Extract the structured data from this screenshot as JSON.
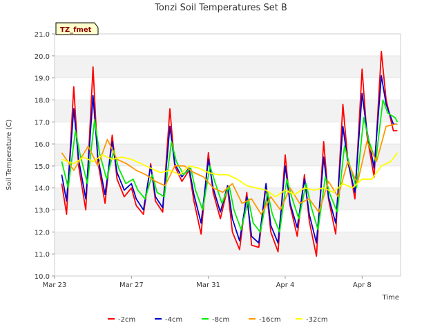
{
  "chart_data": {
    "type": "line",
    "title": "Tonzi Soil Temperatures Set B",
    "xlabel": "Time",
    "ylabel": "Soil Temperature (C)",
    "site_badge": "TZ_fmet",
    "x_ticks": [
      "Mar 23",
      "Mar 27",
      "Mar 31",
      "Apr 4",
      "Apr 8"
    ],
    "xlim": [
      "2023-03-23",
      "2023-04-10"
    ],
    "ylim": [
      10.0,
      21.0
    ],
    "y_ticks": [
      "10.0",
      "11.0",
      "12.0",
      "13.0",
      "14.0",
      "15.0",
      "16.0",
      "17.0",
      "18.0",
      "19.0",
      "20.0",
      "21.0"
    ],
    "grid": "horizontal bands",
    "legend_position": "bottom",
    "series": [
      {
        "name": "-2cm",
        "color": "#ff0000",
        "x": [
          "2023-03-23 09:00",
          "2023-03-23 15:00",
          "2023-03-24 00:00",
          "2023-03-24 06:00",
          "2023-03-24 15:00",
          "2023-03-25 00:00",
          "2023-03-25 06:00",
          "2023-03-25 15:00",
          "2023-03-26 00:00",
          "2023-03-26 06:00",
          "2023-03-26 15:00",
          "2023-03-27 00:00",
          "2023-03-27 06:00",
          "2023-03-27 15:00",
          "2023-03-28 00:00",
          "2023-03-28 06:00",
          "2023-03-28 15:00",
          "2023-03-29 00:00",
          "2023-03-29 06:00",
          "2023-03-29 15:00",
          "2023-03-30 00:00",
          "2023-03-30 06:00",
          "2023-03-30 15:00",
          "2023-03-31 00:00",
          "2023-03-31 06:00",
          "2023-03-31 15:00",
          "2023-04-01 00:00",
          "2023-04-01 06:00",
          "2023-04-01 15:00",
          "2023-04-02 00:00",
          "2023-04-02 06:00",
          "2023-04-02 15:00",
          "2023-04-03 00:00",
          "2023-04-03 06:00",
          "2023-04-03 15:00",
          "2023-04-04 00:00",
          "2023-04-04 06:00",
          "2023-04-04 15:00",
          "2023-04-05 00:00",
          "2023-04-05 06:00",
          "2023-04-05 15:00",
          "2023-04-06 00:00",
          "2023-04-06 06:00",
          "2023-04-06 15:00",
          "2023-04-07 00:00",
          "2023-04-07 06:00",
          "2023-04-07 15:00",
          "2023-04-08 00:00",
          "2023-04-08 06:00",
          "2023-04-08 15:00",
          "2023-04-09 00:00",
          "2023-04-09 06:00",
          "2023-04-09 15:00",
          "2023-04-09 20:00"
        ],
        "values": [
          14.2,
          12.8,
          18.6,
          15.0,
          13.0,
          19.5,
          15.2,
          13.3,
          16.4,
          14.4,
          13.6,
          14.0,
          13.2,
          12.8,
          15.1,
          13.4,
          12.9,
          17.6,
          15.0,
          14.3,
          14.8,
          13.4,
          11.9,
          15.6,
          13.8,
          12.6,
          14.0,
          12.0,
          11.2,
          13.8,
          11.4,
          11.3,
          14.1,
          12.0,
          11.1,
          15.5,
          13.2,
          11.8,
          14.6,
          12.5,
          10.9,
          16.1,
          13.5,
          11.9,
          17.8,
          15.3,
          13.5,
          19.4,
          16.4,
          14.5,
          20.2,
          18.0,
          16.6,
          16.6
        ]
      },
      {
        "name": "-4cm",
        "color": "#0000cc",
        "x": [
          "2023-03-23 09:00",
          "2023-03-23 15:00",
          "2023-03-24 00:00",
          "2023-03-24 06:00",
          "2023-03-24 15:00",
          "2023-03-25 00:00",
          "2023-03-25 06:00",
          "2023-03-25 15:00",
          "2023-03-26 00:00",
          "2023-03-26 06:00",
          "2023-03-26 15:00",
          "2023-03-27 00:00",
          "2023-03-27 06:00",
          "2023-03-27 15:00",
          "2023-03-28 00:00",
          "2023-03-28 06:00",
          "2023-03-28 15:00",
          "2023-03-29 00:00",
          "2023-03-29 06:00",
          "2023-03-29 15:00",
          "2023-03-30 00:00",
          "2023-03-30 06:00",
          "2023-03-30 15:00",
          "2023-03-31 00:00",
          "2023-03-31 06:00",
          "2023-03-31 15:00",
          "2023-04-01 00:00",
          "2023-04-01 06:00",
          "2023-04-01 15:00",
          "2023-04-02 00:00",
          "2023-04-02 06:00",
          "2023-04-02 15:00",
          "2023-04-03 00:00",
          "2023-04-03 06:00",
          "2023-04-03 15:00",
          "2023-04-04 00:00",
          "2023-04-04 06:00",
          "2023-04-04 15:00",
          "2023-04-05 00:00",
          "2023-04-05 06:00",
          "2023-04-05 15:00",
          "2023-04-06 00:00",
          "2023-04-06 06:00",
          "2023-04-06 15:00",
          "2023-04-07 00:00",
          "2023-04-07 06:00",
          "2023-04-07 15:00",
          "2023-04-08 00:00",
          "2023-04-08 06:00",
          "2023-04-08 15:00",
          "2023-04-09 00:00",
          "2023-04-09 06:00",
          "2023-04-09 15:00",
          "2023-04-09 20:00"
        ],
        "values": [
          14.6,
          13.4,
          17.6,
          15.3,
          13.5,
          18.2,
          15.4,
          13.7,
          16.1,
          14.7,
          13.9,
          14.2,
          13.5,
          13.0,
          15.0,
          13.6,
          13.1,
          16.8,
          15.1,
          14.5,
          14.9,
          13.7,
          12.4,
          15.3,
          14.0,
          12.9,
          14.1,
          12.6,
          11.6,
          13.6,
          11.8,
          11.5,
          14.2,
          12.3,
          11.5,
          15.0,
          13.3,
          12.2,
          14.4,
          12.8,
          11.5,
          15.4,
          13.6,
          12.4,
          16.8,
          15.2,
          13.8,
          18.3,
          16.6,
          14.9,
          19.1,
          17.8,
          16.9,
          16.9
        ]
      },
      {
        "name": "-8cm",
        "color": "#00ee00",
        "x": [
          "2023-03-23 09:00",
          "2023-03-23 17:00",
          "2023-03-24 02:00",
          "2023-03-24 08:00",
          "2023-03-24 17:00",
          "2023-03-25 02:00",
          "2023-03-25 08:00",
          "2023-03-25 17:00",
          "2023-03-26 02:00",
          "2023-03-26 08:00",
          "2023-03-26 17:00",
          "2023-03-27 02:00",
          "2023-03-27 08:00",
          "2023-03-27 17:00",
          "2023-03-28 02:00",
          "2023-03-28 08:00",
          "2023-03-28 17:00",
          "2023-03-29 02:00",
          "2023-03-29 08:00",
          "2023-03-29 17:00",
          "2023-03-30 02:00",
          "2023-03-30 08:00",
          "2023-03-30 17:00",
          "2023-03-31 02:00",
          "2023-03-31 08:00",
          "2023-03-31 17:00",
          "2023-04-01 02:00",
          "2023-04-01 08:00",
          "2023-04-01 17:00",
          "2023-04-02 02:00",
          "2023-04-02 08:00",
          "2023-04-02 17:00",
          "2023-04-03 02:00",
          "2023-04-03 08:00",
          "2023-04-03 17:00",
          "2023-04-04 02:00",
          "2023-04-04 08:00",
          "2023-04-04 17:00",
          "2023-04-05 02:00",
          "2023-04-05 08:00",
          "2023-04-05 17:00",
          "2023-04-06 02:00",
          "2023-04-06 08:00",
          "2023-04-06 17:00",
          "2023-04-07 02:00",
          "2023-04-07 08:00",
          "2023-04-07 17:00",
          "2023-04-08 02:00",
          "2023-04-08 08:00",
          "2023-04-08 17:00",
          "2023-04-09 02:00",
          "2023-04-09 08:00",
          "2023-04-09 17:00",
          "2023-04-09 20:00"
        ],
        "values": [
          15.2,
          14.0,
          16.6,
          15.5,
          14.2,
          17.1,
          15.6,
          14.4,
          15.7,
          14.9,
          14.2,
          14.4,
          13.9,
          13.5,
          14.6,
          13.8,
          13.6,
          16.1,
          15.2,
          14.6,
          14.9,
          13.9,
          13.0,
          15.0,
          14.3,
          13.3,
          14.1,
          13.0,
          12.1,
          13.5,
          12.4,
          12.0,
          13.8,
          12.8,
          12.0,
          14.4,
          13.6,
          12.6,
          14.2,
          13.2,
          12.1,
          14.5,
          13.7,
          12.9,
          15.9,
          15.1,
          14.0,
          17.2,
          16.2,
          15.2,
          18.0,
          17.4,
          17.2,
          17.0
        ]
      },
      {
        "name": "-16cm",
        "color": "#ff9900",
        "x": [
          "2023-03-23 09:00",
          "2023-03-24 00:00",
          "2023-03-24 18:00",
          "2023-03-25 06:00",
          "2023-03-25 18:00",
          "2023-03-26 06:00",
          "2023-03-26 18:00",
          "2023-03-27 06:00",
          "2023-03-27 18:00",
          "2023-03-28 06:00",
          "2023-03-28 18:00",
          "2023-03-29 06:00",
          "2023-03-29 18:00",
          "2023-03-30 06:00",
          "2023-03-30 18:00",
          "2023-03-31 06:00",
          "2023-03-31 18:00",
          "2023-04-01 06:00",
          "2023-04-01 18:00",
          "2023-04-02 06:00",
          "2023-04-02 18:00",
          "2023-04-03 06:00",
          "2023-04-03 18:00",
          "2023-04-04 06:00",
          "2023-04-04 18:00",
          "2023-04-05 06:00",
          "2023-04-05 18:00",
          "2023-04-06 06:00",
          "2023-04-06 18:00",
          "2023-04-07 06:00",
          "2023-04-07 18:00",
          "2023-04-08 06:00",
          "2023-04-08 18:00",
          "2023-04-09 06:00",
          "2023-04-09 18:00",
          "2023-04-09 20:00"
        ],
        "values": [
          15.6,
          14.8,
          15.9,
          15.0,
          16.2,
          15.3,
          15.1,
          14.8,
          14.6,
          14.3,
          14.1,
          15.0,
          15.0,
          14.7,
          14.5,
          14.0,
          13.8,
          14.2,
          13.3,
          13.5,
          12.8,
          13.6,
          13.0,
          14.0,
          13.3,
          13.5,
          12.9,
          14.3,
          13.6,
          15.2,
          14.2,
          16.1,
          15.2,
          16.8,
          16.9,
          16.9
        ]
      },
      {
        "name": "-32cm",
        "color": "#ffff00",
        "x": [
          "2023-03-23 09:00",
          "2023-03-24 00:00",
          "2023-03-24 12:00",
          "2023-03-25 00:00",
          "2023-03-25 12:00",
          "2023-03-26 00:00",
          "2023-03-26 12:00",
          "2023-03-27 00:00",
          "2023-03-27 12:00",
          "2023-03-28 00:00",
          "2023-03-28 12:00",
          "2023-03-29 00:00",
          "2023-03-29 12:00",
          "2023-03-30 00:00",
          "2023-03-30 12:00",
          "2023-03-31 00:00",
          "2023-03-31 12:00",
          "2023-04-01 00:00",
          "2023-04-01 12:00",
          "2023-04-02 00:00",
          "2023-04-02 12:00",
          "2023-04-03 00:00",
          "2023-04-03 12:00",
          "2023-04-04 00:00",
          "2023-04-04 12:00",
          "2023-04-05 00:00",
          "2023-04-05 12:00",
          "2023-04-06 00:00",
          "2023-04-06 12:00",
          "2023-04-07 00:00",
          "2023-04-07 12:00",
          "2023-04-08 00:00",
          "2023-04-08 12:00",
          "2023-04-09 00:00",
          "2023-04-09 12:00",
          "2023-04-09 20:00"
        ],
        "values": [
          15.3,
          15.1,
          15.4,
          15.2,
          15.5,
          15.3,
          15.4,
          15.3,
          15.1,
          14.9,
          14.7,
          14.8,
          14.6,
          15.0,
          14.9,
          14.7,
          14.6,
          14.6,
          14.4,
          14.1,
          14.0,
          13.9,
          13.6,
          13.9,
          13.7,
          14.0,
          13.9,
          14.0,
          13.8,
          14.2,
          14.0,
          14.4,
          14.4,
          15.0,
          15.2,
          15.6
        ]
      }
    ]
  }
}
